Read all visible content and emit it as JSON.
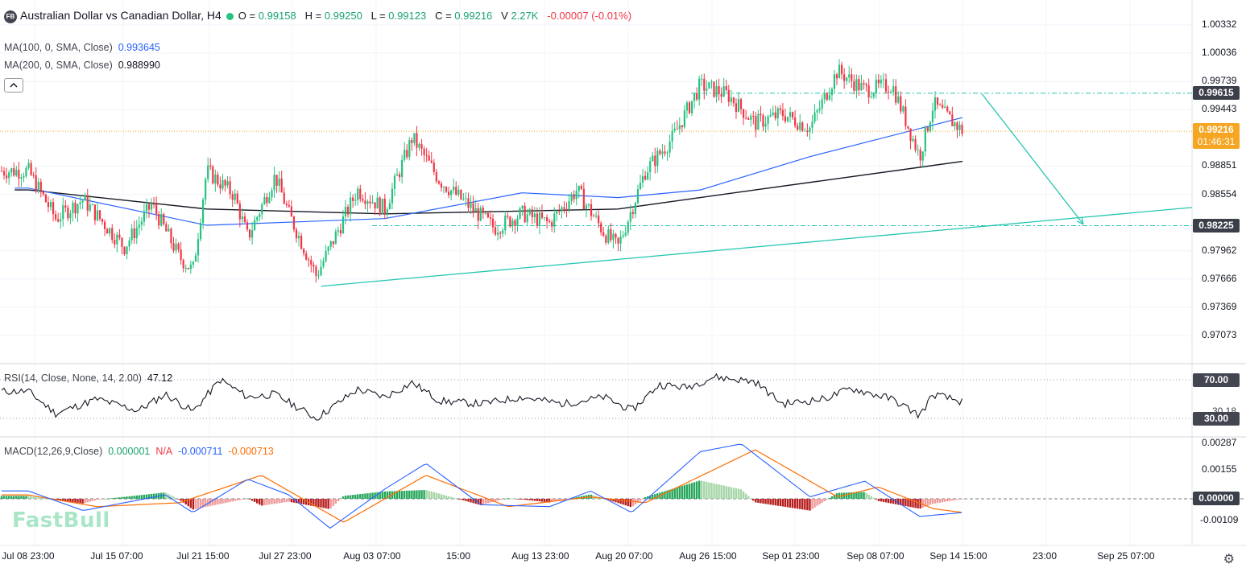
{
  "header": {
    "logo_text": "FB",
    "title": "Australian Dollar vs Canadian Dollar, H4",
    "o_label": "O =",
    "o_value": "0.99158",
    "h_label": "H =",
    "h_value": "0.99250",
    "l_label": "L =",
    "l_value": "0.99123",
    "c_label": "C =",
    "c_value": "0.99216",
    "v_label": "V",
    "v_value": "2.27K",
    "change": "-0.00007 (-0.01%)"
  },
  "indicators": {
    "ma100_label": "MA(100, 0, SMA, Close)",
    "ma100_value": "0.993645",
    "ma200_label": "MA(200, 0, SMA, Close)",
    "ma200_value": "0.988990",
    "rsi_label": "RSI(14, Close, None, 14, 2.00)",
    "rsi_value": "47.12",
    "macd_label": "MACD(12,26,9,Close)",
    "macd_hist": "0.000001",
    "macd_na": "N/A",
    "macd_line": "-0.000711",
    "macd_signal": "-0.000713"
  },
  "price_axis": [
    "1.00332",
    "1.00036",
    "0.99739",
    "0.99443",
    "0.98851",
    "0.98554",
    "0.97962",
    "0.97666",
    "0.97369",
    "0.97073"
  ],
  "price_tags": {
    "upper_line": "0.99615",
    "current": "0.99216",
    "countdown": "01:46:31",
    "lower_line": "0.98225"
  },
  "rsi_axis": {
    "upper": "70.00",
    "lower": "30.00",
    "partial": "30.18"
  },
  "macd_axis": [
    "0.00287",
    "0.00155",
    "0.00000",
    "-0.00109"
  ],
  "time_axis": [
    "Jul 08 23:00",
    "Jul 15 07:00",
    "Jul 21 15:00",
    "Jul 27 23:00",
    "Aug 03 07:00",
    "15:00",
    "Aug 13 23:00",
    "Aug 20 07:00",
    "Aug 26 15:00",
    "Sep 01 23:00",
    "Sep 08 07:00",
    "Sep 14 15:00",
    "23:00",
    "Sep 25 07:00"
  ],
  "watermark": "FastBull",
  "colors": {
    "up": "#26c281",
    "down": "#f23645",
    "ma100": "#2962ff",
    "ma200": "#131722",
    "drawing": "#26c6b2",
    "macd": "#2962ff",
    "signal": "#ff6d00",
    "current_tag": "#f5a623"
  },
  "chart_data": [
    {
      "type": "candlestick",
      "title": "Australian Dollar vs Canadian Dollar, H4",
      "x_range": [
        "Jul 08 23:00",
        "Sep 14 15:00"
      ],
      "ylim": [
        0.9695,
        1.0045
      ],
      "close_path": [
        {
          "t": "Jul 08",
          "close": 0.988
        },
        {
          "t": "Jul 10",
          "close": 0.983
        },
        {
          "t": "Jul 12",
          "close": 0.985
        },
        {
          "t": "Jul 15",
          "close": 0.98
        },
        {
          "t": "Jul 17",
          "close": 0.9845
        },
        {
          "t": "Jul 19",
          "close": 0.979
        },
        {
          "t": "Jul 20",
          "close": 0.9775
        },
        {
          "t": "Jul 21",
          "close": 0.988
        },
        {
          "t": "Jul 23",
          "close": 0.9855
        },
        {
          "t": "Jul 24",
          "close": 0.981
        },
        {
          "t": "Jul 26",
          "close": 0.9875
        },
        {
          "t": "Jul 27",
          "close": 0.9835
        },
        {
          "t": "Jul 29",
          "close": 0.977
        },
        {
          "t": "Aug 01",
          "close": 0.986
        },
        {
          "t": "Aug 03",
          "close": 0.984
        },
        {
          "t": "Aug 05",
          "close": 0.9915
        },
        {
          "t": "Aug 07",
          "close": 0.987
        },
        {
          "t": "Aug 09",
          "close": 0.9845
        },
        {
          "t": "Aug 11",
          "close": 0.982
        },
        {
          "t": "Aug 13",
          "close": 0.9835
        },
        {
          "t": "Aug 15",
          "close": 0.9825
        },
        {
          "t": "Aug 17",
          "close": 0.986
        },
        {
          "t": "Aug 19",
          "close": 0.9815
        },
        {
          "t": "Aug 20",
          "close": 0.98
        },
        {
          "t": "Aug 22",
          "close": 0.988
        },
        {
          "t": "Aug 24",
          "close": 0.9915
        },
        {
          "t": "Aug 26",
          "close": 0.997
        },
        {
          "t": "Aug 28",
          "close": 0.996
        },
        {
          "t": "Aug 30",
          "close": 0.993
        },
        {
          "t": "Sep 01",
          "close": 0.994
        },
        {
          "t": "Sep 03",
          "close": 0.9925
        },
        {
          "t": "Sep 05",
          "close": 0.9985
        },
        {
          "t": "Sep 07",
          "close": 0.9965
        },
        {
          "t": "Sep 09",
          "close": 0.997
        },
        {
          "t": "Sep 11",
          "close": 0.9895
        },
        {
          "t": "Sep 12",
          "close": 0.995
        },
        {
          "t": "Sep 14",
          "close": 0.9922
        }
      ],
      "ma100": [
        {
          "t": "Jul 08",
          "value": 0.9862
        },
        {
          "t": "Jul 21",
          "value": 0.9823
        },
        {
          "t": "Aug 03",
          "value": 0.983
        },
        {
          "t": "Aug 13",
          "value": 0.9857
        },
        {
          "t": "Aug 20",
          "value": 0.9852
        },
        {
          "t": "Aug 26",
          "value": 0.986
        },
        {
          "t": "Sep 03",
          "value": 0.9895
        },
        {
          "t": "Sep 14",
          "value": 0.9936
        }
      ],
      "ma200": [
        {
          "t": "Jul 08",
          "value": 0.986
        },
        {
          "t": "Jul 21",
          "value": 0.984
        },
        {
          "t": "Aug 03",
          "value": 0.9835
        },
        {
          "t": "Aug 20",
          "value": 0.984
        },
        {
          "t": "Aug 30",
          "value": 0.986
        },
        {
          "t": "Sep 14",
          "value": 0.989
        }
      ],
      "annotations": {
        "horizontal_levels": [
          0.99615,
          0.98225
        ],
        "current_price": 0.99216,
        "trendline": [
          {
            "t": "Jul 29",
            "value": 0.9759
          },
          {
            "t": "Sep 25",
            "value": 0.9834
          }
        ],
        "projection_arrow": [
          {
            "t": "Sep 14",
            "value": 0.9961
          },
          {
            "t": "Sep 20",
            "value": 0.9824
          }
        ]
      }
    },
    {
      "type": "line",
      "title": "RSI(14, Close, None, 14, 2.00)",
      "ylim": [
        20,
        80
      ],
      "levels": [
        70,
        30
      ],
      "points": [
        {
          "t": "Jul 08",
          "value": 58
        },
        {
          "t": "Jul 10",
          "value": 35
        },
        {
          "t": "Jul 13",
          "value": 50
        },
        {
          "t": "Jul 16",
          "value": 38
        },
        {
          "t": "Jul 18",
          "value": 55
        },
        {
          "t": "Jul 20",
          "value": 37
        },
        {
          "t": "Jul 22",
          "value": 70
        },
        {
          "t": "Jul 24",
          "value": 52
        },
        {
          "t": "Jul 26",
          "value": 55
        },
        {
          "t": "Jul 29",
          "value": 30
        },
        {
          "t": "Aug 01",
          "value": 60
        },
        {
          "t": "Aug 03",
          "value": 52
        },
        {
          "t": "Aug 05",
          "value": 67
        },
        {
          "t": "Aug 07",
          "value": 48
        },
        {
          "t": "Aug 10",
          "value": 45
        },
        {
          "t": "Aug 13",
          "value": 52
        },
        {
          "t": "Aug 16",
          "value": 45
        },
        {
          "t": "Aug 19",
          "value": 52
        },
        {
          "t": "Aug 21",
          "value": 38
        },
        {
          "t": "Aug 23",
          "value": 65
        },
        {
          "t": "Aug 25",
          "value": 62
        },
        {
          "t": "Aug 27",
          "value": 73
        },
        {
          "t": "Aug 30",
          "value": 68
        },
        {
          "t": "Sep 01",
          "value": 45
        },
        {
          "t": "Sep 04",
          "value": 50
        },
        {
          "t": "Sep 06",
          "value": 61
        },
        {
          "t": "Sep 09",
          "value": 50
        },
        {
          "t": "Sep 11",
          "value": 33
        },
        {
          "t": "Sep 12",
          "value": 55
        },
        {
          "t": "Sep 14",
          "value": 47
        }
      ]
    },
    {
      "type": "line",
      "title": "MACD(12,26,9,Close)",
      "ylim": [
        -0.0016,
        0.0032
      ],
      "series": [
        {
          "name": "MACD",
          "points": [
            {
              "t": "Jul 08",
              "value": 0.0004
            },
            {
              "t": "Jul 12",
              "value": -0.0006
            },
            {
              "t": "Jul 18",
              "value": 0.0002
            },
            {
              "t": "Jul 20",
              "value": -0.0007
            },
            {
              "t": "Jul 24",
              "value": 0.001
            },
            {
              "t": "Jul 27",
              "value": 0.0002
            },
            {
              "t": "Jul 30",
              "value": -0.0015
            },
            {
              "t": "Aug 03",
              "value": 0.0005
            },
            {
              "t": "Aug 06",
              "value": 0.0018
            },
            {
              "t": "Aug 10",
              "value": -0.0003
            },
            {
              "t": "Aug 15",
              "value": -0.0004
            },
            {
              "t": "Aug 18",
              "value": 0.0004
            },
            {
              "t": "Aug 21",
              "value": -0.0007
            },
            {
              "t": "Aug 26",
              "value": 0.0024
            },
            {
              "t": "Aug 29",
              "value": 0.0028
            },
            {
              "t": "Sep 03",
              "value": 0.0001
            },
            {
              "t": "Sep 07",
              "value": 0.0009
            },
            {
              "t": "Sep 11",
              "value": -0.0009
            },
            {
              "t": "Sep 14",
              "value": -0.0007
            }
          ]
        },
        {
          "name": "Signal",
          "points": [
            {
              "t": "Jul 08",
              "value": 0.0002
            },
            {
              "t": "Jul 13",
              "value": -0.0004
            },
            {
              "t": "Jul 19",
              "value": -0.0002
            },
            {
              "t": "Jul 25",
              "value": 0.0012
            },
            {
              "t": "Jul 31",
              "value": -0.0012
            },
            {
              "t": "Aug 06",
              "value": 0.0012
            },
            {
              "t": "Aug 12",
              "value": -0.0004
            },
            {
              "t": "Aug 18",
              "value": 0.0001
            },
            {
              "t": "Aug 22",
              "value": -0.0002
            },
            {
              "t": "Aug 30",
              "value": 0.0025
            },
            {
              "t": "Sep 05",
              "value": 0.0001
            },
            {
              "t": "Sep 08",
              "value": 0.0006
            },
            {
              "t": "Sep 12",
              "value": -0.0005
            },
            {
              "t": "Sep 14",
              "value": -0.0007
            }
          ]
        }
      ],
      "histogram_zero": 0.0
    }
  ]
}
